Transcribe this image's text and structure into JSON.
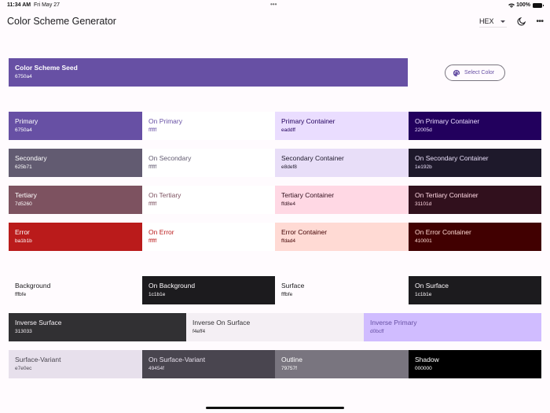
{
  "status_bar": {
    "time": "11:34 AM",
    "date": "Fri May 27",
    "multitask_dots": "•••",
    "wifi_icon": "wifi-icon",
    "battery_percent": "100%"
  },
  "app_bar": {
    "title": "Color Scheme Generator",
    "format_select": {
      "value": "HEX"
    },
    "theme_toggle_icon": "moon-icon",
    "more_icon": "more-horizontal-icon",
    "more_label": "•••"
  },
  "seed": {
    "label": "Color Scheme Seed",
    "hex": "6750a4",
    "color": "#6750a4",
    "select_button_label": "Select Color",
    "select_button_icon": "palette-icon"
  },
  "rows": [
    [
      {
        "name": "Primary",
        "hex": "6750a4",
        "bg": "#6750a4",
        "fg": "#ffffff"
      },
      {
        "name": "On Primary",
        "hex": "ffffff",
        "bg": "#ffffff",
        "fg": "#6750a4"
      },
      {
        "name": "Primary Container",
        "hex": "eaddff",
        "bg": "#eaddff",
        "fg": "#22005d"
      },
      {
        "name": "On Primary Container",
        "hex": "22005d",
        "bg": "#22005d",
        "fg": "#eaddff"
      }
    ],
    [
      {
        "name": "Secondary",
        "hex": "625b71",
        "bg": "#625b71",
        "fg": "#ffffff"
      },
      {
        "name": "On Secondary",
        "hex": "ffffff",
        "bg": "#ffffff",
        "fg": "#625b71"
      },
      {
        "name": "Secondary Container",
        "hex": "e8def8",
        "bg": "#e8def8",
        "fg": "#1e192b"
      },
      {
        "name": "On Secondary Container",
        "hex": "1e192b",
        "bg": "#1e192b",
        "fg": "#e8def8"
      }
    ],
    [
      {
        "name": "Tertiary",
        "hex": "7d5260",
        "bg": "#7d5260",
        "fg": "#ffffff"
      },
      {
        "name": "On Tertiary",
        "hex": "ffffff",
        "bg": "#ffffff",
        "fg": "#7d5260"
      },
      {
        "name": "Tertiary Container",
        "hex": "ffd8e4",
        "bg": "#ffd8e4",
        "fg": "#31101d"
      },
      {
        "name": "On Tertiary Container",
        "hex": "31101d",
        "bg": "#31101d",
        "fg": "#ffd8e4"
      }
    ],
    [
      {
        "name": "Error",
        "hex": "ba1b1b",
        "bg": "#ba1b1b",
        "fg": "#ffffff"
      },
      {
        "name": "On Error",
        "hex": "ffffff",
        "bg": "#ffffff",
        "fg": "#ba1b1b"
      },
      {
        "name": "Error Container",
        "hex": "ffdad4",
        "bg": "#ffdad4",
        "fg": "#410001"
      },
      {
        "name": "On Error Container",
        "hex": "410001",
        "bg": "#410001",
        "fg": "#ffdad4"
      }
    ]
  ],
  "surface_rows": [
    [
      {
        "name": "Background",
        "hex": "fffbfe",
        "bg": "#fffbfe",
        "fg": "#1c1b1e"
      },
      {
        "name": "On Background",
        "hex": "1c1b1e",
        "bg": "#1c1b1e",
        "fg": "#fffbfe"
      },
      {
        "name": "Surface",
        "hex": "fffbfe",
        "bg": "#fffbfe",
        "fg": "#1c1b1e"
      },
      {
        "name": "On Surface",
        "hex": "1c1b1e",
        "bg": "#1c1b1e",
        "fg": "#fffbfe"
      }
    ],
    [
      {
        "name": "Inverse Surface",
        "hex": "313033",
        "bg": "#313033",
        "fg": "#f4eff4"
      },
      {
        "name": "Inverse On Surface",
        "hex": "f4eff4",
        "bg": "#f4eff4",
        "fg": "#313033"
      },
      {
        "name": "Inverse Primary",
        "hex": "d0bcff",
        "bg": "#d0bcff",
        "fg": "#6750a4"
      }
    ],
    [
      {
        "name": "Surface-Variant",
        "hex": "e7e0ec",
        "bg": "#e7e0ec",
        "fg": "#49454f"
      },
      {
        "name": "On Surface-Variant",
        "hex": "49454f",
        "bg": "#49454f",
        "fg": "#e7e0ec"
      },
      {
        "name": "Outline",
        "hex": "79757f",
        "bg": "#79757f",
        "fg": "#ffffff"
      },
      {
        "name": "Shadow",
        "hex": "000000",
        "bg": "#000000",
        "fg": "#ffffff"
      }
    ]
  ]
}
